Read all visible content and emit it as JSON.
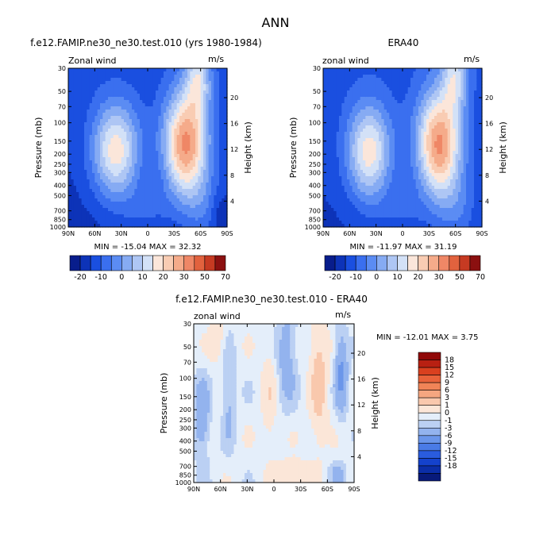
{
  "main_title": "ANN",
  "panels": {
    "model": {
      "title": "f.e12.FAMIP.ne30_ne30.test.010 (yrs 1980-1984)",
      "left_label": "Zonal wind",
      "right_label": "m/s",
      "stats": "MIN = -15.04   MAX = 32.32"
    },
    "obs": {
      "title": "ERA40",
      "left_label": "zonal wind",
      "right_label": "m/s",
      "stats": "MIN = -11.97   MAX = 31.19"
    },
    "diff": {
      "title": "f.e12.FAMIP.ne30_ne30.test.010 - ERA40",
      "left_label": "zonal wind",
      "right_label": "m/s",
      "stats": "MIN = -12.01   MAX =   3.75"
    }
  },
  "colors": {
    "top_palette": [
      "#081d8c",
      "#0d33b8",
      "#1a4fe0",
      "#3a6fef",
      "#5b8cf3",
      "#86abf3",
      "#aec6f4",
      "#d3e1f7",
      "#fbe6da",
      "#f9ccb3",
      "#f5ab8a",
      "#ef8766",
      "#e2623e",
      "#c63a22",
      "#8b1010"
    ],
    "diff_palette": [
      "#081a7a",
      "#0b2ea8",
      "#1442cc",
      "#2a5cde",
      "#4a7be6",
      "#6b96ea",
      "#93b3ee",
      "#bbd0f3",
      "#e4eefa",
      "#fbe6d8",
      "#f9c8ad",
      "#f5a680",
      "#f08457",
      "#e8623a",
      "#d9401f",
      "#b82012",
      "#900808"
    ]
  },
  "chart_data": [
    {
      "type": "heatmap",
      "name": "model",
      "ylabel": "Pressure (mb)",
      "y2label": "Height (km)",
      "xticks": [
        "90N",
        "60N",
        "30N",
        "0",
        "30S",
        "60S",
        "90S"
      ],
      "yticks": [
        "30",
        "50",
        "70",
        "100",
        "150",
        "200",
        "250",
        "300",
        "400",
        "500",
        "700",
        "850",
        "1000"
      ],
      "y2ticks": [
        "20",
        "16",
        "12",
        "8",
        "4"
      ],
      "ylim": [
        1000,
        30
      ],
      "yscale": "log",
      "colorbar_labels": [
        "-20",
        "-10",
        "0",
        "10",
        "20",
        "30",
        "50",
        "70"
      ],
      "min": -15.04,
      "max": 32.32
    },
    {
      "type": "heatmap",
      "name": "obs",
      "ylabel": "Pressure (mb)",
      "y2label": "Height (km)",
      "xticks": [
        "90N",
        "60N",
        "30N",
        "0",
        "30S",
        "60S",
        "90S"
      ],
      "yticks": [
        "30",
        "50",
        "70",
        "100",
        "150",
        "200",
        "250",
        "300",
        "400",
        "500",
        "700",
        "850",
        "1000"
      ],
      "y2ticks": [
        "20",
        "16",
        "12",
        "8",
        "4"
      ],
      "ylim": [
        1000,
        30
      ],
      "yscale": "log",
      "colorbar_labels": [
        "-20",
        "-10",
        "0",
        "10",
        "20",
        "30",
        "50",
        "70"
      ],
      "min": -11.97,
      "max": 31.19
    },
    {
      "type": "heatmap",
      "name": "diff",
      "ylabel": "Pressure (mb)",
      "y2label": "Height (km)",
      "xticks": [
        "90N",
        "60N",
        "30N",
        "0",
        "30S",
        "60S",
        "90S"
      ],
      "yticks": [
        "30",
        "50",
        "70",
        "100",
        "150",
        "200",
        "250",
        "300",
        "400",
        "500",
        "700",
        "850",
        "1000"
      ],
      "y2ticks": [
        "20",
        "16",
        "12",
        "8",
        "4"
      ],
      "ylim": [
        1000,
        30
      ],
      "yscale": "log",
      "colorbar_labels": [
        "18",
        "15",
        "12",
        "9",
        "6",
        "3",
        "1",
        "0",
        "-1",
        "-3",
        "-6",
        "-9",
        "-12",
        "-15",
        "-18"
      ],
      "min": -12.01,
      "max": 3.75
    }
  ]
}
